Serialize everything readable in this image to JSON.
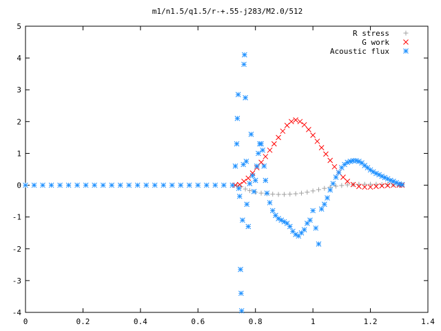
{
  "chart_data": {
    "type": "scatter",
    "title": "m1/n1.5/q1.5/r-+.55-j283/M2.0/512",
    "xlabel": "",
    "ylabel": "",
    "xlim": [
      0,
      1.4
    ],
    "ylim": [
      -4,
      5
    ],
    "x_ticks": [
      "0",
      "0.2",
      "0.4",
      "0.6",
      "0.8",
      "1",
      "1.2",
      "1.4"
    ],
    "y_ticks": [
      "-4",
      "-3",
      "-2",
      "-1",
      "0",
      "1",
      "2",
      "3",
      "4",
      "5"
    ],
    "grid": false,
    "legend": "top-right",
    "series": [
      {
        "name": "R stress",
        "marker": "plus",
        "color": "#a0a0a0",
        "points": [
          [
            0.735,
            0.0
          ],
          [
            0.75,
            -0.05
          ],
          [
            0.765,
            -0.12
          ],
          [
            0.78,
            -0.17
          ],
          [
            0.8,
            -0.22
          ],
          [
            0.82,
            -0.25
          ],
          [
            0.84,
            -0.27
          ],
          [
            0.86,
            -0.28
          ],
          [
            0.88,
            -0.29
          ],
          [
            0.9,
            -0.29
          ],
          [
            0.92,
            -0.28
          ],
          [
            0.94,
            -0.27
          ],
          [
            0.96,
            -0.25
          ],
          [
            0.98,
            -0.22
          ],
          [
            1.0,
            -0.18
          ],
          [
            1.02,
            -0.14
          ],
          [
            1.04,
            -0.1
          ],
          [
            1.06,
            -0.06
          ],
          [
            1.08,
            -0.03
          ],
          [
            1.1,
            -0.01
          ],
          [
            1.12,
            0.01
          ],
          [
            1.14,
            0.02
          ],
          [
            1.16,
            0.03
          ],
          [
            1.18,
            0.03
          ],
          [
            1.2,
            0.03
          ],
          [
            1.22,
            0.03
          ],
          [
            1.24,
            0.02
          ],
          [
            1.26,
            0.02
          ],
          [
            1.28,
            0.01
          ],
          [
            1.3,
            0.0
          ],
          [
            1.31,
            0.0
          ]
        ]
      },
      {
        "name": "G work",
        "marker": "cross",
        "color": "#ff0000",
        "points": [
          [
            0.73,
            0.0
          ],
          [
            0.745,
            0.02
          ],
          [
            0.76,
            0.12
          ],
          [
            0.775,
            0.22
          ],
          [
            0.79,
            0.38
          ],
          [
            0.805,
            0.55
          ],
          [
            0.82,
            0.72
          ],
          [
            0.835,
            0.9
          ],
          [
            0.85,
            1.1
          ],
          [
            0.865,
            1.3
          ],
          [
            0.88,
            1.5
          ],
          [
            0.895,
            1.7
          ],
          [
            0.91,
            1.88
          ],
          [
            0.925,
            2.0
          ],
          [
            0.94,
            2.05
          ],
          [
            0.955,
            2.0
          ],
          [
            0.97,
            1.9
          ],
          [
            0.985,
            1.75
          ],
          [
            1.0,
            1.57
          ],
          [
            1.015,
            1.38
          ],
          [
            1.03,
            1.18
          ],
          [
            1.045,
            0.98
          ],
          [
            1.06,
            0.78
          ],
          [
            1.075,
            0.58
          ],
          [
            1.09,
            0.4
          ],
          [
            1.105,
            0.25
          ],
          [
            1.12,
            0.12
          ],
          [
            1.14,
            0.02
          ],
          [
            1.16,
            -0.04
          ],
          [
            1.18,
            -0.06
          ],
          [
            1.2,
            -0.06
          ],
          [
            1.22,
            -0.04
          ],
          [
            1.24,
            -0.02
          ],
          [
            1.26,
            -0.01
          ],
          [
            1.28,
            0.0
          ],
          [
            1.3,
            0.0
          ],
          [
            1.31,
            0.0
          ]
        ]
      },
      {
        "name": "Acoustic flux",
        "marker": "star",
        "color": "#1e90ff",
        "points": [
          [
            0.0,
            0.0
          ],
          [
            0.03,
            0.0
          ],
          [
            0.06,
            0.0
          ],
          [
            0.09,
            0.0
          ],
          [
            0.12,
            0.0
          ],
          [
            0.15,
            0.0
          ],
          [
            0.18,
            0.0
          ],
          [
            0.21,
            0.0
          ],
          [
            0.24,
            0.0
          ],
          [
            0.27,
            0.0
          ],
          [
            0.3,
            0.0
          ],
          [
            0.33,
            0.0
          ],
          [
            0.36,
            0.0
          ],
          [
            0.39,
            0.0
          ],
          [
            0.42,
            0.0
          ],
          [
            0.45,
            0.0
          ],
          [
            0.48,
            0.0
          ],
          [
            0.51,
            0.0
          ],
          [
            0.54,
            0.0
          ],
          [
            0.57,
            0.0
          ],
          [
            0.6,
            0.0
          ],
          [
            0.63,
            0.0
          ],
          [
            0.66,
            0.0
          ],
          [
            0.69,
            0.0
          ],
          [
            0.72,
            0.0
          ],
          [
            0.73,
            0.6
          ],
          [
            0.735,
            1.3
          ],
          [
            0.737,
            2.1
          ],
          [
            0.74,
            2.85
          ],
          [
            0.742,
            -0.1
          ],
          [
            0.745,
            -0.35
          ],
          [
            0.748,
            -2.65
          ],
          [
            0.75,
            -3.4
          ],
          [
            0.752,
            -3.95
          ],
          [
            0.755,
            -1.1
          ],
          [
            0.758,
            0.65
          ],
          [
            0.76,
            3.8
          ],
          [
            0.762,
            4.1
          ],
          [
            0.765,
            2.75
          ],
          [
            0.768,
            0.75
          ],
          [
            0.77,
            -0.6
          ],
          [
            0.775,
            -1.3
          ],
          [
            0.78,
            0.05
          ],
          [
            0.785,
            1.6
          ],
          [
            0.79,
            0.3
          ],
          [
            0.795,
            -0.2
          ],
          [
            0.8,
            0.15
          ],
          [
            0.805,
            0.6
          ],
          [
            0.81,
            1.0
          ],
          [
            0.815,
            1.3
          ],
          [
            0.82,
            1.3
          ],
          [
            0.825,
            1.1
          ],
          [
            0.83,
            0.6
          ],
          [
            0.835,
            0.15
          ],
          [
            0.84,
            -0.25
          ],
          [
            0.85,
            -0.55
          ],
          [
            0.86,
            -0.8
          ],
          [
            0.87,
            -0.95
          ],
          [
            0.88,
            -1.05
          ],
          [
            0.89,
            -1.1
          ],
          [
            0.9,
            -1.15
          ],
          [
            0.91,
            -1.2
          ],
          [
            0.92,
            -1.3
          ],
          [
            0.93,
            -1.45
          ],
          [
            0.94,
            -1.55
          ],
          [
            0.95,
            -1.6
          ],
          [
            0.96,
            -1.5
          ],
          [
            0.97,
            -1.4
          ],
          [
            0.98,
            -1.2
          ],
          [
            0.99,
            -1.1
          ],
          [
            1.0,
            -0.8
          ],
          [
            1.01,
            -1.35
          ],
          [
            1.02,
            -1.85
          ],
          [
            1.03,
            -0.75
          ],
          [
            1.04,
            -0.6
          ],
          [
            1.05,
            -0.4
          ],
          [
            1.06,
            -0.15
          ],
          [
            1.07,
            0.05
          ],
          [
            1.08,
            0.25
          ],
          [
            1.09,
            0.4
          ],
          [
            1.1,
            0.55
          ],
          [
            1.11,
            0.65
          ],
          [
            1.12,
            0.72
          ],
          [
            1.13,
            0.75
          ],
          [
            1.14,
            0.77
          ],
          [
            1.15,
            0.77
          ],
          [
            1.16,
            0.75
          ],
          [
            1.17,
            0.7
          ],
          [
            1.18,
            0.62
          ],
          [
            1.19,
            0.55
          ],
          [
            1.2,
            0.48
          ],
          [
            1.21,
            0.42
          ],
          [
            1.22,
            0.37
          ],
          [
            1.23,
            0.33
          ],
          [
            1.24,
            0.28
          ],
          [
            1.25,
            0.24
          ],
          [
            1.26,
            0.2
          ],
          [
            1.27,
            0.15
          ],
          [
            1.28,
            0.12
          ],
          [
            1.29,
            0.08
          ],
          [
            1.3,
            0.04
          ],
          [
            1.31,
            0.02
          ]
        ]
      }
    ]
  }
}
